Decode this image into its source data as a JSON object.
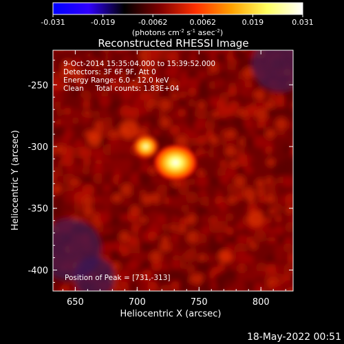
{
  "colorbar": {
    "ticks": [
      "-0.031",
      "-0.019",
      "-0.0062",
      "0.0062",
      "0.019",
      "0.031"
    ],
    "unit_main": "(photons cm",
    "unit_sup1": "-2",
    "unit_mid": " s",
    "unit_sup2": "-1",
    "unit_end": " asec",
    "unit_sup3": "-2",
    "unit_close": ")",
    "colors": [
      "#0000ff",
      "#3000ff",
      "#000000",
      "#7f0000",
      "#ff3000",
      "#ffa000",
      "#ffff60",
      "#ffffff"
    ]
  },
  "title": "Reconstructed RHESSI Image",
  "annotations": {
    "line1": "9-Oct-2014 15:35:04.000 to 15:39:52.000",
    "line2": "Detectors: 3F 6F 9F, Att 0",
    "line3": "Energy Range: 6.0 - 12.0 keV",
    "line4": "Clean     Total counts: 1.83E+04",
    "peak": "Position of Peak = [731,-313]"
  },
  "footer_timestamp": "18-May-2022 00:51",
  "chart_data": {
    "type": "heatmap",
    "title": "Reconstructed RHESSI Image",
    "xlabel": "Heliocentric X (arcsec)",
    "ylabel": "Heliocentric Y (arcsec)",
    "xlim": [
      632,
      826
    ],
    "ylim": [
      -417,
      -222
    ],
    "x_ticks": [
      650,
      700,
      750,
      800
    ],
    "y_ticks": [
      -250,
      -300,
      -350,
      -400
    ],
    "x_tick_labels": [
      "650",
      "700",
      "750",
      "800"
    ],
    "y_tick_labels": [
      "-250",
      "-300",
      "-350",
      "-400"
    ],
    "colorbar_range": [
      -0.031,
      0.031
    ],
    "sources": [
      {
        "x": 731,
        "y": -313,
        "peak": 0.031
      },
      {
        "x": 707,
        "y": -300,
        "peak": 0.024
      }
    ],
    "peak_position": [
      731,
      -313
    ]
  }
}
